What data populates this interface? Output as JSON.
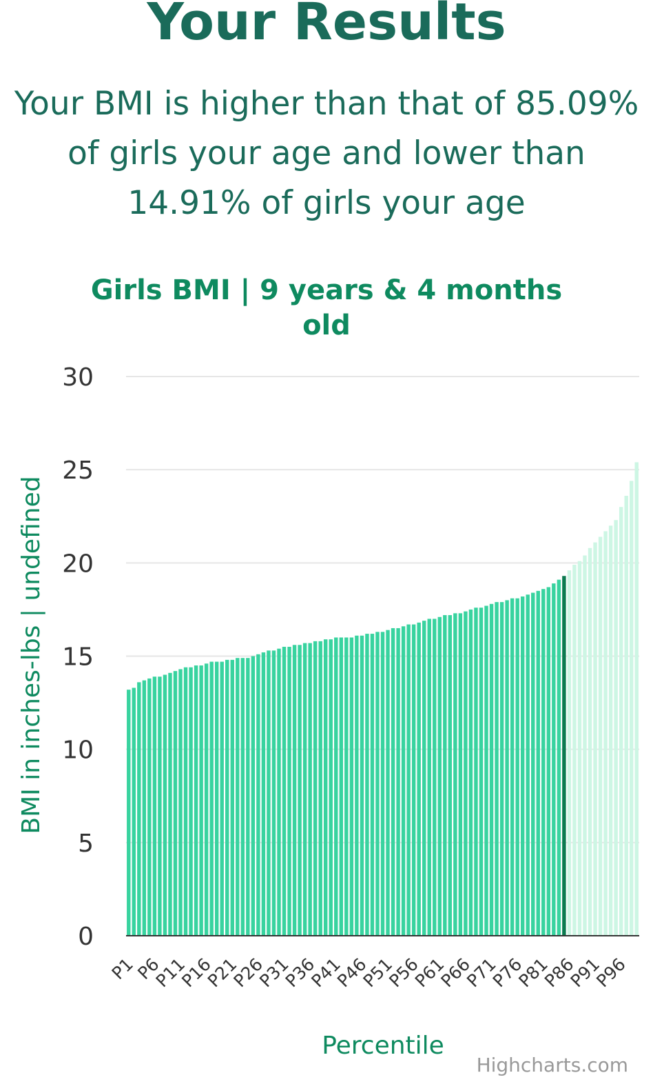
{
  "page": {
    "title": "Your Results",
    "result_line1": "Your BMI is higher than that of 85.09%",
    "result_line2": "of girls your age and lower than",
    "result_line3": "14.91% of girls your age",
    "credit": "Highcharts.com"
  },
  "colors": {
    "heading": "#1a6b5a",
    "chart_title": "#0e8a5f",
    "bar_below": "#38d39f",
    "bar_user": "#0b7a4f",
    "bar_above": "#cdf6e4",
    "grid": "#e6e6e6",
    "axis_line": "#333333",
    "tick_text": "#333333",
    "credit": "#999999"
  },
  "chart_data": {
    "type": "bar",
    "title_line1": "Girls BMI | 9 years & 4 months",
    "title_line2": "old",
    "xlabel": "Percentile",
    "ylabel": "BMI in inches-lbs | undefined",
    "ylim": [
      0,
      30
    ],
    "yticks": [
      0,
      5,
      10,
      15,
      20,
      25,
      30
    ],
    "grid": true,
    "highlight_index": 84,
    "categories": [
      "P1",
      "P2",
      "P3",
      "P4",
      "P5",
      "P6",
      "P7",
      "P8",
      "P9",
      "P10",
      "P11",
      "P12",
      "P13",
      "P14",
      "P15",
      "P16",
      "P17",
      "P18",
      "P19",
      "P20",
      "P21",
      "P22",
      "P23",
      "P24",
      "P25",
      "P26",
      "P27",
      "P28",
      "P29",
      "P30",
      "P31",
      "P32",
      "P33",
      "P34",
      "P35",
      "P36",
      "P37",
      "P38",
      "P39",
      "P40",
      "P41",
      "P42",
      "P43",
      "P44",
      "P45",
      "P46",
      "P47",
      "P48",
      "P49",
      "P50",
      "P51",
      "P52",
      "P53",
      "P54",
      "P55",
      "P56",
      "P57",
      "P58",
      "P59",
      "P60",
      "P61",
      "P62",
      "P63",
      "P64",
      "P65",
      "P66",
      "P67",
      "P68",
      "P69",
      "P70",
      "P71",
      "P72",
      "P73",
      "P74",
      "P75",
      "P76",
      "P77",
      "P78",
      "P79",
      "P80",
      "P81",
      "P82",
      "P83",
      "P84",
      "P85",
      "P86",
      "P87",
      "P88",
      "P89",
      "P90",
      "P91",
      "P92",
      "P93",
      "P94",
      "P95",
      "P96",
      "P97",
      "P98",
      "P99"
    ],
    "tick_labels": [
      "P1",
      "P6",
      "P11",
      "P16",
      "P21",
      "P26",
      "P31",
      "P36",
      "P41",
      "P46",
      "P51",
      "P56",
      "P61",
      "P66",
      "P71",
      "P76",
      "P81",
      "P86",
      "P91",
      "P96"
    ],
    "values": [
      13.2,
      13.3,
      13.6,
      13.7,
      13.8,
      13.9,
      13.9,
      14.0,
      14.1,
      14.2,
      14.3,
      14.4,
      14.4,
      14.5,
      14.5,
      14.6,
      14.7,
      14.7,
      14.7,
      14.8,
      14.8,
      14.9,
      14.9,
      14.9,
      15.0,
      15.1,
      15.2,
      15.3,
      15.3,
      15.4,
      15.5,
      15.5,
      15.6,
      15.6,
      15.7,
      15.7,
      15.8,
      15.8,
      15.9,
      15.9,
      16.0,
      16.0,
      16.0,
      16.0,
      16.1,
      16.1,
      16.2,
      16.2,
      16.3,
      16.3,
      16.4,
      16.5,
      16.5,
      16.6,
      16.7,
      16.7,
      16.8,
      16.9,
      17.0,
      17.0,
      17.1,
      17.2,
      17.2,
      17.3,
      17.3,
      17.4,
      17.5,
      17.6,
      17.6,
      17.7,
      17.8,
      17.9,
      17.9,
      18.0,
      18.1,
      18.1,
      18.2,
      18.3,
      18.4,
      18.5,
      18.6,
      18.7,
      18.9,
      19.1,
      19.3,
      19.6,
      19.9,
      20.1,
      20.4,
      20.8,
      21.1,
      21.4,
      21.7,
      22.0,
      22.3,
      23.0,
      23.6,
      24.4,
      25.4
    ]
  }
}
